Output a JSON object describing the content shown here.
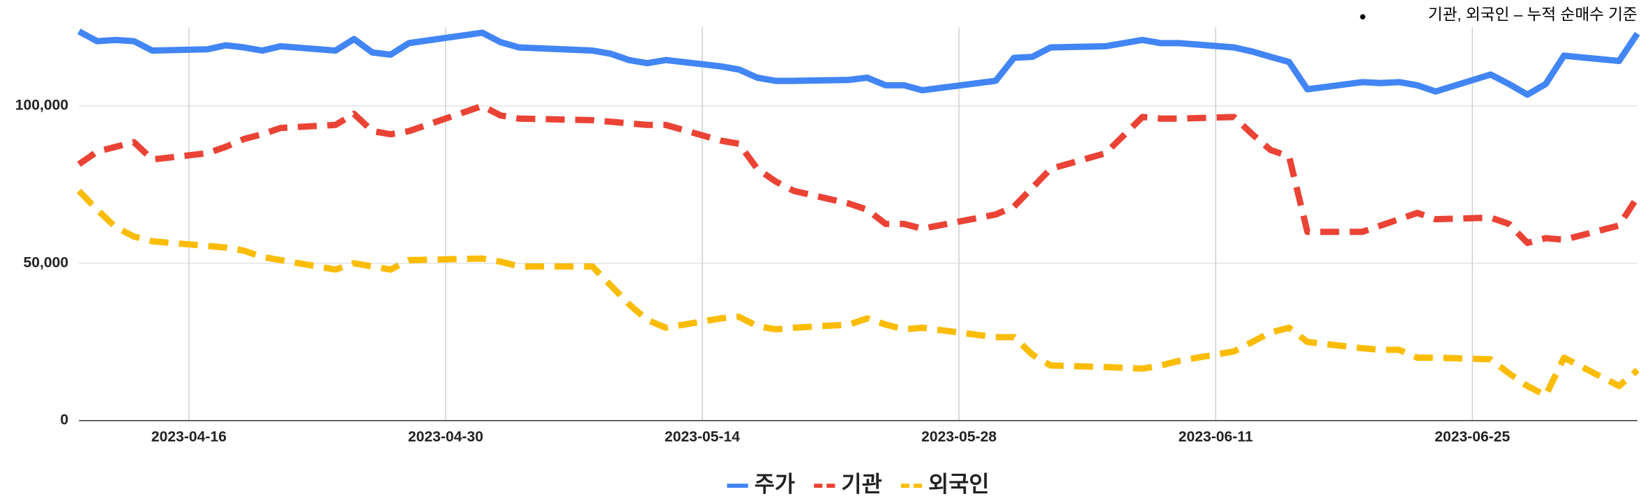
{
  "chart_data": {
    "type": "line",
    "annotation": "기관, 외국인 – 누적 순매수 기준",
    "x": [
      "2023-04-10",
      "2023-04-11",
      "2023-04-12",
      "2023-04-13",
      "2023-04-14",
      "2023-04-17",
      "2023-04-18",
      "2023-04-19",
      "2023-04-20",
      "2023-04-21",
      "2023-04-24",
      "2023-04-25",
      "2023-04-26",
      "2023-04-27",
      "2023-04-28",
      "2023-05-02",
      "2023-05-03",
      "2023-05-04",
      "2023-05-08",
      "2023-05-09",
      "2023-05-10",
      "2023-05-11",
      "2023-05-12",
      "2023-05-15",
      "2023-05-16",
      "2023-05-17",
      "2023-05-18",
      "2023-05-19",
      "2023-05-22",
      "2023-05-23",
      "2023-05-24",
      "2023-05-25",
      "2023-05-26",
      "2023-05-30",
      "2023-05-31",
      "2023-06-01",
      "2023-06-02",
      "2023-06-05",
      "2023-06-07",
      "2023-06-08",
      "2023-06-09",
      "2023-06-12",
      "2023-06-13",
      "2023-06-14",
      "2023-06-15",
      "2023-06-16",
      "2023-06-19",
      "2023-06-20",
      "2023-06-21",
      "2023-06-22",
      "2023-06-23",
      "2023-06-26",
      "2023-06-27",
      "2023-06-28",
      "2023-06-29",
      "2023-06-30",
      "2023-07-03",
      "2023-07-04"
    ],
    "series": [
      {
        "name": "주가",
        "color": "#4285f4",
        "style": "solid",
        "values": [
          123700,
          120600,
          121000,
          120600,
          117600,
          118000,
          119300,
          118600,
          117600,
          119000,
          117600,
          121300,
          117000,
          116300,
          120000,
          123300,
          120300,
          118600,
          117600,
          116600,
          114600,
          113600,
          114600,
          112600,
          111600,
          109000,
          108000,
          108000,
          108300,
          109000,
          106600,
          106600,
          105000,
          108000,
          115300,
          115600,
          118600,
          119000,
          121000,
          120000,
          120000,
          118600,
          117300,
          115600,
          114000,
          105300,
          107600,
          107300,
          107600,
          106600,
          104600,
          110000,
          107000,
          103600,
          107000,
          116000,
          114300,
          123000
        ]
      },
      {
        "name": "기관",
        "color": "#ea4335",
        "style": "dashed",
        "values": [
          81500,
          85500,
          87000,
          88500,
          83000,
          85000,
          87000,
          89500,
          91000,
          93000,
          94000,
          97500,
          92000,
          91000,
          92000,
          100000,
          97000,
          96000,
          95500,
          95000,
          94500,
          94000,
          94000,
          89000,
          88000,
          80000,
          76000,
          73000,
          69000,
          67000,
          62500,
          62500,
          61000,
          65500,
          68000,
          74000,
          80000,
          85000,
          96500,
          96000,
          96000,
          96500,
          91000,
          86000,
          84000,
          60000,
          60000,
          62000,
          64000,
          66000,
          64000,
          64500,
          62500,
          56500,
          58000,
          57500,
          62000,
          71000
        ]
      },
      {
        "name": "외국인",
        "color": "#fbbc04",
        "style": "dashed",
        "values": [
          73000,
          67000,
          61500,
          58500,
          57000,
          55500,
          55000,
          54000,
          52000,
          51000,
          48000,
          50000,
          49000,
          48000,
          51000,
          51500,
          50500,
          49000,
          49000,
          43000,
          37000,
          32000,
          29500,
          32500,
          33000,
          30000,
          29000,
          29500,
          30500,
          32500,
          30500,
          29000,
          29500,
          26500,
          26500,
          21000,
          17500,
          17000,
          16500,
          17500,
          19000,
          22000,
          25000,
          28000,
          29500,
          25000,
          23000,
          22500,
          22500,
          20000,
          20000,
          19500,
          15000,
          11000,
          8000,
          20000,
          11000,
          16000
        ]
      }
    ],
    "xlim": [
      "2023-04-10",
      "2023-07-04"
    ],
    "xticks": [
      "2023-04-16",
      "2023-04-30",
      "2023-05-14",
      "2023-05-28",
      "2023-06-11",
      "2023-06-25"
    ],
    "ylim": [
      0,
      125000
    ],
    "yticks": [
      0,
      {
        "value": 50000,
        "label": "50,000"
      },
      {
        "value": 100000,
        "label": "100,000"
      }
    ],
    "grid": true,
    "legend": "bottom"
  }
}
